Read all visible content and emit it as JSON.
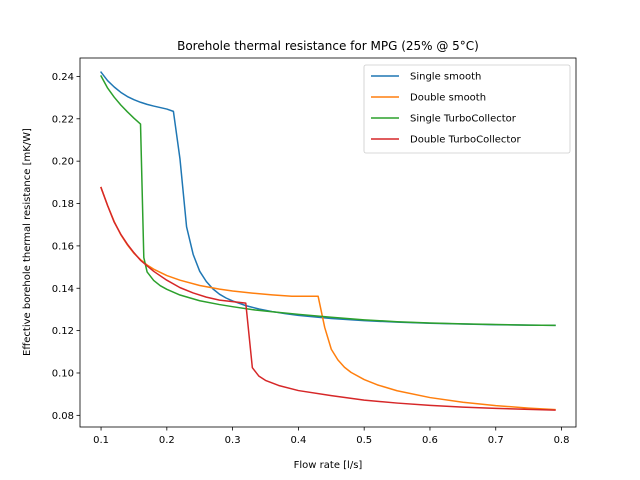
{
  "chart_data": {
    "type": "line",
    "title": "Borehole thermal resistance for MPG (25% @ 5°C)",
    "xlabel": "Flow rate [l/s]",
    "ylabel": "Effective borehole thermal resistance [mK/W]",
    "xlim": [
      0.068,
      0.822
    ],
    "ylim": [
      0.0745,
      0.2487
    ],
    "xticks": [
      0.1,
      0.2,
      0.3,
      0.4,
      0.5,
      0.6,
      0.7,
      0.8
    ],
    "xtick_labels": [
      "0.1",
      "0.2",
      "0.3",
      "0.4",
      "0.5",
      "0.6",
      "0.7",
      "0.8"
    ],
    "yticks": [
      0.08,
      0.1,
      0.12,
      0.14,
      0.16,
      0.18,
      0.2,
      0.22,
      0.24
    ],
    "ytick_labels": [
      "0.08",
      "0.10",
      "0.12",
      "0.14",
      "0.16",
      "0.18",
      "0.20",
      "0.22",
      "0.24"
    ],
    "grid": false,
    "legend_position": "top-right",
    "series": [
      {
        "name": "Single smooth",
        "color": "#1f77b4",
        "x": [
          0.1,
          0.11,
          0.12,
          0.13,
          0.14,
          0.15,
          0.16,
          0.17,
          0.18,
          0.19,
          0.2,
          0.21,
          0.22,
          0.23,
          0.24,
          0.25,
          0.26,
          0.27,
          0.28,
          0.29,
          0.3,
          0.32,
          0.34,
          0.36,
          0.38,
          0.4,
          0.45,
          0.5,
          0.55,
          0.6,
          0.65,
          0.7,
          0.75,
          0.79
        ],
        "y": [
          0.242,
          0.238,
          0.235,
          0.2325,
          0.2305,
          0.229,
          0.2278,
          0.2268,
          0.226,
          0.2253,
          0.2246,
          0.2235,
          0.201,
          0.169,
          0.156,
          0.148,
          0.1432,
          0.1397,
          0.1372,
          0.1354,
          0.134,
          0.1318,
          0.1302,
          0.129,
          0.128,
          0.1272,
          0.1257,
          0.1247,
          0.124,
          0.1235,
          0.1231,
          0.1228,
          0.1226,
          0.1225
        ]
      },
      {
        "name": "Double smooth",
        "color": "#ff7f0e",
        "x": [
          0.1,
          0.11,
          0.12,
          0.13,
          0.14,
          0.15,
          0.16,
          0.17,
          0.18,
          0.2,
          0.22,
          0.25,
          0.28,
          0.3,
          0.33,
          0.36,
          0.39,
          0.43,
          0.44,
          0.45,
          0.46,
          0.47,
          0.48,
          0.5,
          0.52,
          0.55,
          0.6,
          0.65,
          0.7,
          0.75,
          0.79
        ],
        "y": [
          0.1875,
          0.179,
          0.1715,
          0.1653,
          0.1605,
          0.1565,
          0.1535,
          0.151,
          0.149,
          0.146,
          0.1438,
          0.1413,
          0.1396,
          0.1387,
          0.1377,
          0.1369,
          0.1362,
          0.1362,
          0.1215,
          0.1112,
          0.1062,
          0.1027,
          0.1003,
          0.0969,
          0.0944,
          0.0916,
          0.0884,
          0.0862,
          0.0846,
          0.0834,
          0.0827
        ]
      },
      {
        "name": "Single TurboCollector",
        "color": "#2ca02c",
        "x": [
          0.1,
          0.11,
          0.12,
          0.13,
          0.14,
          0.15,
          0.16,
          0.165,
          0.17,
          0.18,
          0.19,
          0.2,
          0.22,
          0.25,
          0.28,
          0.3,
          0.33,
          0.36,
          0.4,
          0.45,
          0.5,
          0.55,
          0.6,
          0.65,
          0.7,
          0.75,
          0.79
        ],
        "y": [
          0.2402,
          0.2345,
          0.2302,
          0.2265,
          0.2233,
          0.2203,
          0.2175,
          0.1545,
          0.1477,
          0.1437,
          0.1412,
          0.1395,
          0.1368,
          0.1341,
          0.1323,
          0.1313,
          0.1299,
          0.1289,
          0.1277,
          0.1263,
          0.1251,
          0.1242,
          0.1236,
          0.1232,
          0.1229,
          0.1226,
          0.1225
        ]
      },
      {
        "name": "Double TurboCollector",
        "color": "#d62728",
        "x": [
          0.1,
          0.11,
          0.12,
          0.13,
          0.14,
          0.15,
          0.16,
          0.18,
          0.2,
          0.22,
          0.24,
          0.26,
          0.28,
          0.3,
          0.32,
          0.33,
          0.34,
          0.35,
          0.37,
          0.4,
          0.45,
          0.5,
          0.55,
          0.6,
          0.65,
          0.7,
          0.75,
          0.79
        ],
        "y": [
          0.1875,
          0.179,
          0.1712,
          0.1655,
          0.1608,
          0.1568,
          0.1532,
          0.148,
          0.1438,
          0.1403,
          0.1378,
          0.1358,
          0.1344,
          0.1337,
          0.133,
          0.1025,
          0.0985,
          0.0965,
          0.0941,
          0.0917,
          0.0893,
          0.0872,
          0.0858,
          0.0847,
          0.0839,
          0.0833,
          0.0828,
          0.0825
        ]
      }
    ]
  }
}
